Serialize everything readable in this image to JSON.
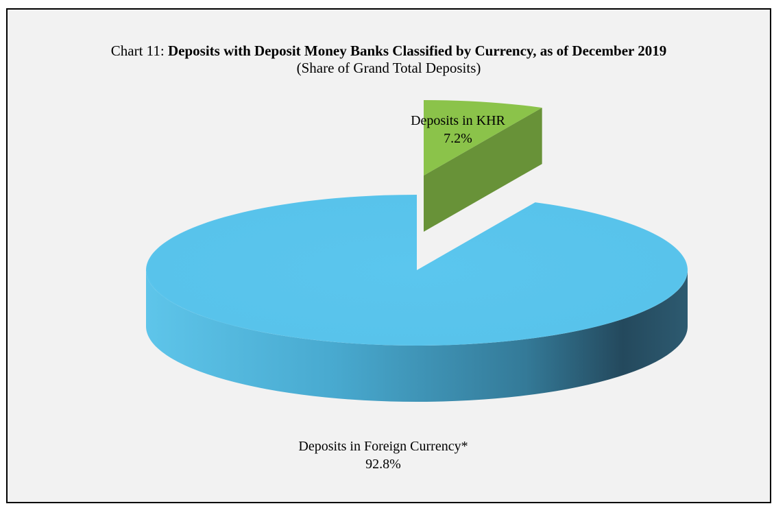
{
  "chart_data": {
    "type": "pie",
    "title_prefix": "Chart 11: ",
    "title": "Deposits with Deposit Money Banks Classified by Currency, as of December 2019",
    "subtitle": "(Share of Grand Total Deposits)",
    "unit": "%",
    "slices": [
      {
        "label": "Deposits in KHR",
        "value": 7.2,
        "value_label": "7.2%",
        "color": "#8bc34a",
        "exploded": true
      },
      {
        "label": "Deposits in Foreign Currency*",
        "value": 92.8,
        "value_label": "92.8%",
        "color": "#58c4ec",
        "exploded": false
      }
    ]
  }
}
